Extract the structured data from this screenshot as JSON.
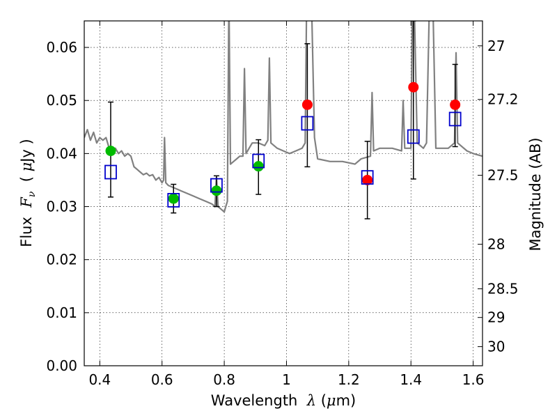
{
  "chart_data": {
    "type": "scatter",
    "title": "",
    "xlabel": "Wavelength  λ (μm)",
    "ylabel": "Flux  Fν  ( μJy )",
    "y2label": "Magnitude (AB)",
    "xlim": [
      0.35,
      1.63
    ],
    "ylim": [
      0.0,
      0.065
    ],
    "grid": true,
    "x_ticks": [
      0.4,
      0.6,
      0.8,
      1.0,
      1.2,
      1.4,
      1.6
    ],
    "x_tick_labels": [
      "0.4",
      "0.6",
      "0.8",
      "1",
      "1.2",
      "1.4",
      "1.6"
    ],
    "y_ticks": [
      0.0,
      0.01,
      0.02,
      0.03,
      0.04,
      0.05,
      0.06
    ],
    "y_tick_labels": [
      "0.00",
      "0.01",
      "0.02",
      "0.03",
      "0.04",
      "0.05",
      "0.06"
    ],
    "y2_ticks": [
      {
        "label": "27",
        "flux": 0.0603
      },
      {
        "label": "27.2",
        "flux": 0.0502
      },
      {
        "label": "27.5",
        "flux": 0.0359
      },
      {
        "label": "28",
        "flux": 0.0229
      },
      {
        "label": "28.5",
        "flux": 0.0145
      },
      {
        "label": "29",
        "flux": 0.0091
      },
      {
        "label": "30",
        "flux": 0.0036
      }
    ],
    "series": [
      {
        "marker": "circle",
        "color": "#00bb00",
        "points": [
          {
            "x": 0.435,
            "y": 0.0405
          },
          {
            "x": 0.637,
            "y": 0.0315
          },
          {
            "x": 0.775,
            "y": 0.033
          },
          {
            "x": 0.91,
            "y": 0.0376
          }
        ]
      },
      {
        "marker": "circle",
        "color": "#ff0000",
        "points": [
          {
            "x": 1.067,
            "y": 0.0492
          },
          {
            "x": 1.26,
            "y": 0.035
          },
          {
            "x": 1.408,
            "y": 0.0525
          },
          {
            "x": 1.542,
            "y": 0.0492
          }
        ]
      },
      {
        "marker": "open-square",
        "color": "#0000cc",
        "points": [
          {
            "x": 0.435,
            "y": 0.0365
          },
          {
            "x": 0.637,
            "y": 0.0312
          },
          {
            "x": 0.775,
            "y": 0.034
          },
          {
            "x": 0.91,
            "y": 0.0386
          },
          {
            "x": 1.067,
            "y": 0.0457
          },
          {
            "x": 1.26,
            "y": 0.0355
          },
          {
            "x": 1.408,
            "y": 0.0432
          },
          {
            "x": 1.542,
            "y": 0.0465
          }
        ]
      },
      {
        "marker": "line",
        "color": "#808080",
        "points": [
          {
            "x": 0.35,
            "y": 0.043
          },
          {
            "x": 0.36,
            "y": 0.0445
          },
          {
            "x": 0.37,
            "y": 0.0425
          },
          {
            "x": 0.38,
            "y": 0.044
          },
          {
            "x": 0.39,
            "y": 0.042
          },
          {
            "x": 0.4,
            "y": 0.043
          },
          {
            "x": 0.41,
            "y": 0.0425
          },
          {
            "x": 0.42,
            "y": 0.043
          },
          {
            "x": 0.43,
            "y": 0.041
          },
          {
            "x": 0.44,
            "y": 0.0405
          },
          {
            "x": 0.45,
            "y": 0.041
          },
          {
            "x": 0.46,
            "y": 0.04
          },
          {
            "x": 0.47,
            "y": 0.0405
          },
          {
            "x": 0.48,
            "y": 0.0395
          },
          {
            "x": 0.49,
            "y": 0.04
          },
          {
            "x": 0.5,
            "y": 0.0395
          },
          {
            "x": 0.51,
            "y": 0.0375
          },
          {
            "x": 0.52,
            "y": 0.037
          },
          {
            "x": 0.53,
            "y": 0.0365
          },
          {
            "x": 0.54,
            "y": 0.036
          },
          {
            "x": 0.55,
            "y": 0.0363
          },
          {
            "x": 0.56,
            "y": 0.0358
          },
          {
            "x": 0.57,
            "y": 0.036
          },
          {
            "x": 0.58,
            "y": 0.035
          },
          {
            "x": 0.59,
            "y": 0.0355
          },
          {
            "x": 0.6,
            "y": 0.0345
          },
          {
            "x": 0.605,
            "y": 0.035
          },
          {
            "x": 0.608,
            "y": 0.043
          },
          {
            "x": 0.612,
            "y": 0.0345
          },
          {
            "x": 0.62,
            "y": 0.034
          },
          {
            "x": 0.64,
            "y": 0.0335
          },
          {
            "x": 0.66,
            "y": 0.033
          },
          {
            "x": 0.68,
            "y": 0.0325
          },
          {
            "x": 0.7,
            "y": 0.032
          },
          {
            "x": 0.72,
            "y": 0.0315
          },
          {
            "x": 0.74,
            "y": 0.031
          },
          {
            "x": 0.76,
            "y": 0.0305
          },
          {
            "x": 0.77,
            "y": 0.03
          },
          {
            "x": 0.775,
            "y": 0.0355
          },
          {
            "x": 0.78,
            "y": 0.03
          },
          {
            "x": 0.79,
            "y": 0.0295
          },
          {
            "x": 0.8,
            "y": 0.029
          },
          {
            "x": 0.805,
            "y": 0.03
          },
          {
            "x": 0.81,
            "y": 0.031
          },
          {
            "x": 0.815,
            "y": 0.07
          },
          {
            "x": 0.82,
            "y": 0.038
          },
          {
            "x": 0.83,
            "y": 0.0385
          },
          {
            "x": 0.84,
            "y": 0.039
          },
          {
            "x": 0.85,
            "y": 0.0395
          },
          {
            "x": 0.86,
            "y": 0.0395
          },
          {
            "x": 0.865,
            "y": 0.056
          },
          {
            "x": 0.87,
            "y": 0.04
          },
          {
            "x": 0.88,
            "y": 0.041
          },
          {
            "x": 0.89,
            "y": 0.042
          },
          {
            "x": 0.9,
            "y": 0.042
          },
          {
            "x": 0.91,
            "y": 0.042
          },
          {
            "x": 0.93,
            "y": 0.0415
          },
          {
            "x": 0.94,
            "y": 0.0425
          },
          {
            "x": 0.945,
            "y": 0.058
          },
          {
            "x": 0.95,
            "y": 0.042
          },
          {
            "x": 0.97,
            "y": 0.041
          },
          {
            "x": 0.99,
            "y": 0.0405
          },
          {
            "x": 1.01,
            "y": 0.04
          },
          {
            "x": 1.03,
            "y": 0.0405
          },
          {
            "x": 1.05,
            "y": 0.041
          },
          {
            "x": 1.06,
            "y": 0.042
          },
          {
            "x": 1.065,
            "y": 0.07
          },
          {
            "x": 1.08,
            "y": 0.07
          },
          {
            "x": 1.09,
            "y": 0.043
          },
          {
            "x": 1.1,
            "y": 0.039
          },
          {
            "x": 1.14,
            "y": 0.0385
          },
          {
            "x": 1.18,
            "y": 0.0385
          },
          {
            "x": 1.22,
            "y": 0.038
          },
          {
            "x": 1.24,
            "y": 0.039
          },
          {
            "x": 1.27,
            "y": 0.0395
          },
          {
            "x": 1.275,
            "y": 0.0515
          },
          {
            "x": 1.28,
            "y": 0.0405
          },
          {
            "x": 1.3,
            "y": 0.041
          },
          {
            "x": 1.34,
            "y": 0.041
          },
          {
            "x": 1.37,
            "y": 0.0405
          },
          {
            "x": 1.375,
            "y": 0.05
          },
          {
            "x": 1.38,
            "y": 0.041
          },
          {
            "x": 1.4,
            "y": 0.041
          },
          {
            "x": 1.405,
            "y": 0.07
          },
          {
            "x": 1.41,
            "y": 0.07
          },
          {
            "x": 1.42,
            "y": 0.042
          },
          {
            "x": 1.44,
            "y": 0.041
          },
          {
            "x": 1.45,
            "y": 0.042
          },
          {
            "x": 1.46,
            "y": 0.07
          },
          {
            "x": 1.47,
            "y": 0.07
          },
          {
            "x": 1.48,
            "y": 0.041
          },
          {
            "x": 1.52,
            "y": 0.041
          },
          {
            "x": 1.54,
            "y": 0.042
          },
          {
            "x": 1.545,
            "y": 0.059
          },
          {
            "x": 1.55,
            "y": 0.042
          },
          {
            "x": 1.58,
            "y": 0.0405
          },
          {
            "x": 1.6,
            "y": 0.04
          },
          {
            "x": 1.63,
            "y": 0.0395
          }
        ]
      }
    ],
    "error_bars": [
      {
        "x": 0.435,
        "low": 0.0318,
        "high": 0.0497
      },
      {
        "x": 0.637,
        "low": 0.0288,
        "high": 0.0342
      },
      {
        "x": 0.775,
        "low": 0.03,
        "high": 0.0358
      },
      {
        "x": 0.91,
        "low": 0.0323,
        "high": 0.0426
      },
      {
        "x": 1.067,
        "low": 0.0375,
        "high": 0.0607
      },
      {
        "x": 1.26,
        "low": 0.0277,
        "high": 0.0423
      },
      {
        "x": 1.408,
        "low": 0.0352,
        "high": 0.065
      },
      {
        "x": 1.542,
        "low": 0.0413,
        "high": 0.0568
      }
    ]
  }
}
